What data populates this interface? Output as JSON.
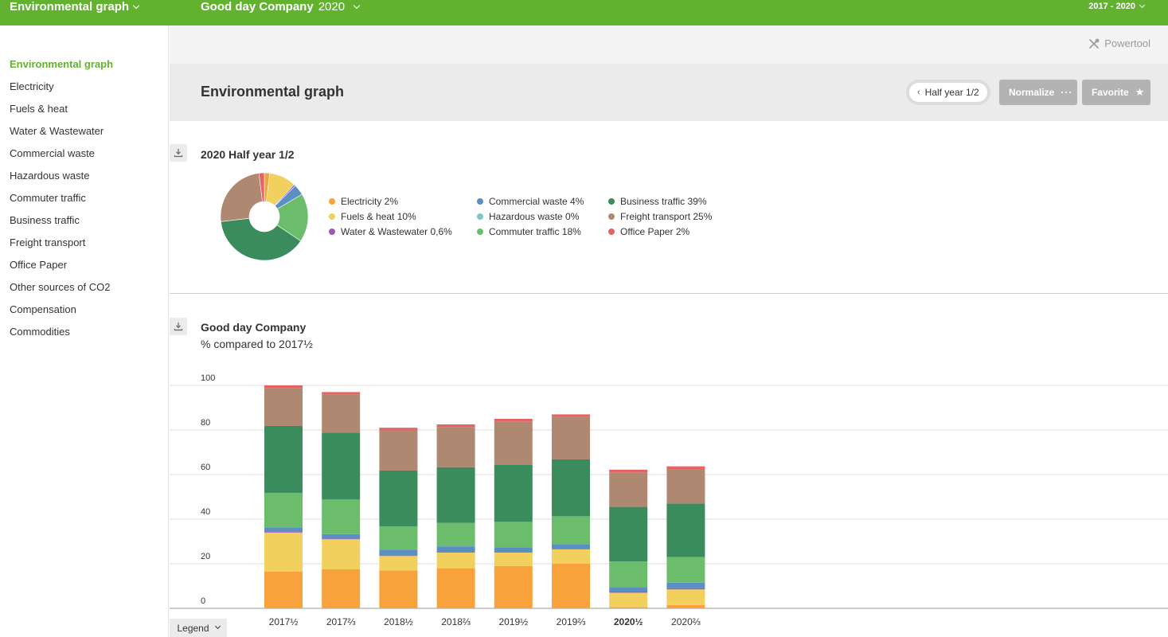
{
  "topbar": {
    "app_title": "Environmental graph",
    "company": "Good day Company",
    "year": "2020",
    "range": "2017 - 2020"
  },
  "toolstrip": {
    "powertool": "Powertool"
  },
  "sidebar": {
    "items": [
      {
        "label": "Environmental graph",
        "active": true
      },
      {
        "label": "Electricity"
      },
      {
        "label": "Fuels & heat"
      },
      {
        "label": "Water & Wastewater"
      },
      {
        "label": "Commercial waste"
      },
      {
        "label": "Hazardous waste"
      },
      {
        "label": "Commuter traffic"
      },
      {
        "label": "Business traffic"
      },
      {
        "label": "Freight transport"
      },
      {
        "label": "Office Paper"
      },
      {
        "label": "Other sources of CO2"
      },
      {
        "label": "Compensation"
      },
      {
        "label": "Commodities"
      }
    ]
  },
  "header": {
    "title": "Environmental graph",
    "period_label": "Half year 1/2",
    "normalize_label": "Normalize",
    "favorite_label": "Favorite"
  },
  "pie_section": {
    "title": "2020 Half year 1/2"
  },
  "bar_section": {
    "title": "Good day Company",
    "subtitle": "% compared to 2017½"
  },
  "legend_button": "Legend",
  "colors": {
    "electricity": "#f7a23b",
    "fuels": "#f2d05e",
    "water": "#9b59b6",
    "commercial": "#5b8ec4",
    "hazardous": "#7dc8c0",
    "commuter": "#6bbd6b",
    "business": "#3a8c5c",
    "freight": "#ae8870",
    "paper": "#e46464"
  },
  "chart_data": [
    {
      "type": "pie",
      "title": "2020 Half year 1/2",
      "slices": [
        {
          "label": "Electricity 2%",
          "key": "electricity",
          "value": 2
        },
        {
          "label": "Fuels & heat 10%",
          "key": "fuels",
          "value": 10
        },
        {
          "label": "Water & Wastewater 0,6%",
          "key": "water",
          "value": 0.6
        },
        {
          "label": "Commercial waste 4%",
          "key": "commercial",
          "value": 4
        },
        {
          "label": "Hazardous waste 0%",
          "key": "hazardous",
          "value": 0
        },
        {
          "label": "Commuter traffic 18%",
          "key": "commuter",
          "value": 18
        },
        {
          "label": "Business traffic 39%",
          "key": "business",
          "value": 39
        },
        {
          "label": "Freight transport 25%",
          "key": "freight",
          "value": 25
        },
        {
          "label": "Office Paper 2%",
          "key": "paper",
          "value": 2
        }
      ],
      "legend_placement": "right"
    },
    {
      "type": "bar",
      "stacked": true,
      "title": "Good day Company",
      "subtitle": "% compared to 2017½",
      "ylim": [
        0,
        100
      ],
      "yticks": [
        "0",
        "20",
        "40",
        "60",
        "80",
        "100"
      ],
      "grid": true,
      "categories": [
        "2017½",
        "2017⅔",
        "2018½",
        "2018⅔",
        "2019½",
        "2019⅔",
        "2020½",
        "2020⅔"
      ],
      "highlight_category": "2020½",
      "series": [
        {
          "key": "electricity",
          "values": [
            16.5,
            17.5,
            17,
            18,
            19,
            20,
            0.5,
            1.5
          ]
        },
        {
          "key": "fuels",
          "values": [
            17.5,
            13.5,
            6.5,
            7,
            6,
            6.5,
            6.5,
            7
          ]
        },
        {
          "key": "water",
          "values": [
            0.3,
            0.3,
            0.3,
            0.3,
            0.3,
            0.3,
            0.5,
            0.5
          ]
        },
        {
          "key": "commercial",
          "values": [
            2,
            2,
            2.5,
            2.5,
            2,
            2,
            2,
            2.5
          ]
        },
        {
          "key": "hazardous",
          "values": [
            0,
            0,
            0,
            0,
            0,
            0,
            0,
            0
          ]
        },
        {
          "key": "commuter",
          "values": [
            15.5,
            15.5,
            10.5,
            10.5,
            11.5,
            12.5,
            11.5,
            11.5
          ]
        },
        {
          "key": "business",
          "values": [
            30,
            30,
            25,
            25,
            25.5,
            25.5,
            24.5,
            24
          ]
        },
        {
          "key": "freight",
          "values": [
            17,
            17,
            18,
            18,
            19.5,
            19,
            15.5,
            15.5
          ]
        },
        {
          "key": "paper",
          "values": [
            1.2,
            1.2,
            1.2,
            1.2,
            1.2,
            1.2,
            1.2,
            1.2
          ]
        }
      ]
    }
  ]
}
